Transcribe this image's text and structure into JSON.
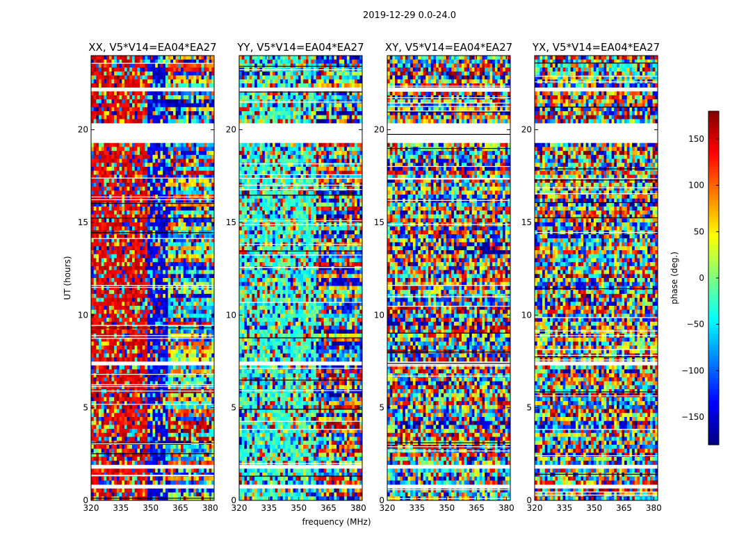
{
  "suptitle": "2019-12-29 0.0-24.0",
  "xlabel": "frequency (MHz)",
  "ylabel": "UT (hours)",
  "colorbar": {
    "label": "phase (deg.)",
    "range": [
      -180,
      180
    ],
    "ticks": [
      -150,
      -100,
      -50,
      0,
      50,
      100,
      150
    ],
    "tick_labels": [
      "−150",
      "−100",
      "−50",
      "0",
      "50",
      "100",
      "150"
    ],
    "colormap": "jet"
  },
  "chart_data": {
    "type": "heatmap",
    "x_range": [
      320,
      382
    ],
    "y_range": [
      0,
      24
    ],
    "xticks": [
      320,
      335,
      350,
      365,
      380
    ],
    "xtick_labels": [
      "320",
      "335",
      "350",
      "365",
      "380"
    ],
    "yticks": [
      0,
      5,
      10,
      15,
      20
    ],
    "ytick_labels": [
      "0",
      "5",
      "10",
      "15",
      "20"
    ],
    "gaps_hours": [
      [
        0.55,
        0.8
      ],
      [
        1.75,
        1.9
      ],
      [
        7.3,
        7.6
      ],
      [
        19.2,
        20.3
      ],
      [
        22.0,
        22.2
      ],
      [
        22.9,
        23.0
      ]
    ],
    "panels": [
      {
        "title": "XX, V5*V14=EA04*EA27",
        "dominant_phase": "red (~+150 deg) at low frequency, blue (~-150 deg) near 350 MHz"
      },
      {
        "title": "YY, V5*V14=EA04*EA27",
        "dominant_phase": "cyan/green (~-30 deg) at low frequency, mixed above 360 MHz"
      },
      {
        "title": "XY, V5*V14=EA04*EA27",
        "dominant_phase": "noise-like, full -180 to 180 deg range"
      },
      {
        "title": "YX, V5*V14=EA04*EA27",
        "dominant_phase": "noise-like, full -180 to 180 deg range"
      }
    ]
  }
}
